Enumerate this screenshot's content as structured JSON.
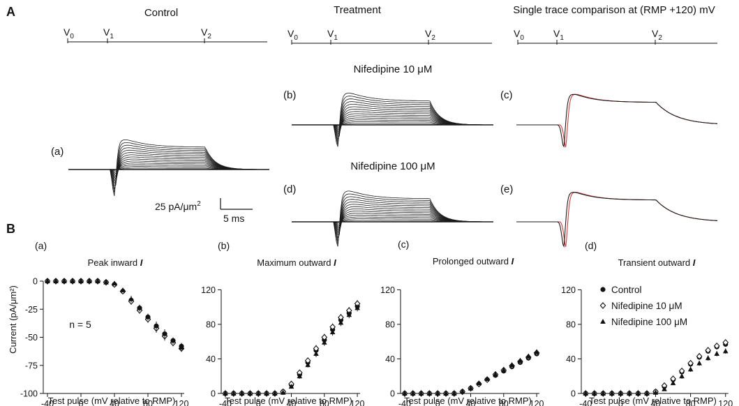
{
  "panel_labels": {
    "A": "A",
    "B": "B"
  },
  "section_A": {
    "titles": {
      "control": "Control",
      "treatment": "Treatment",
      "comparison": "Single trace comparison at (RMP +120) mV"
    },
    "protocol_labels": {
      "v0": "V",
      "v1": "V",
      "v2": "V",
      "s0": "0",
      "s1": "1",
      "s2": "2"
    },
    "subtitles": {
      "nif10": "Nifedipine 10 μM",
      "nif100": "Nifedipine 100 μM"
    },
    "sublabels": {
      "a": "(a)",
      "b": "(b)",
      "c": "(c)",
      "d": "(d)",
      "e": "(e)"
    },
    "scale_bar": {
      "current_label": "25 pA/μm",
      "current_sup": "2",
      "time_label": "5 ms"
    },
    "trace_colors": {
      "main": "#1a1a1a",
      "overlay": "#d43a3a"
    }
  },
  "section_B": {
    "y_axis_label": "Current (pA/μm²)",
    "n_label": "n = 5",
    "legend": {
      "control": "Control",
      "nif10": "Nifedipine 10 μM",
      "nif100": "Nifedipine 100 μM"
    }
  },
  "chart_data": [
    {
      "type": "scatter",
      "panel": "(a)",
      "title": "Peak inward I",
      "title_main": "Peak inward ",
      "title_italic": "I",
      "xlabel": "Test pulse (mV relative to RMP)",
      "ylabel": "Current (pA/μm²)",
      "xlim": [
        -45,
        125
      ],
      "ylim": [
        -100,
        0
      ],
      "xticks": [
        -40,
        0,
        40,
        80,
        120
      ],
      "yticks": [
        0,
        -25,
        -50,
        -75,
        -100
      ],
      "x": [
        -40,
        -30,
        -20,
        -10,
        0,
        10,
        20,
        30,
        40,
        50,
        60,
        70,
        80,
        90,
        100,
        110,
        120
      ],
      "series": [
        {
          "name": "Control",
          "marker": "circle",
          "values": [
            0,
            0,
            0,
            0,
            0,
            0,
            0,
            -1,
            -3,
            -9,
            -17,
            -24,
            -32,
            -40,
            -47,
            -53,
            -58
          ],
          "err": [
            0,
            0,
            0,
            0,
            0,
            0,
            0,
            1,
            1,
            2,
            3,
            3,
            3,
            4,
            4,
            3,
            3
          ]
        },
        {
          "name": "Nifedipine 10 μM",
          "marker": "diamond",
          "values": [
            0,
            0,
            0,
            0,
            0,
            0,
            0,
            -1,
            -3,
            -9,
            -18,
            -26,
            -34,
            -42,
            -49,
            -55,
            -60
          ],
          "err": [
            0,
            0,
            0,
            0,
            0,
            0,
            0,
            1,
            1,
            2,
            3,
            3,
            3,
            4,
            4,
            3,
            3
          ]
        },
        {
          "name": "Nifedipine 100 μM",
          "marker": "triangle",
          "values": [
            0,
            0,
            0,
            0,
            0,
            0,
            0,
            -1,
            -2,
            -8,
            -16,
            -24,
            -32,
            -40,
            -47,
            -53,
            -59
          ],
          "err": [
            0,
            0,
            0,
            0,
            0,
            0,
            0,
            1,
            1,
            2,
            3,
            3,
            3,
            4,
            4,
            3,
            3
          ]
        }
      ]
    },
    {
      "type": "scatter",
      "panel": "(b)",
      "title": "Maximum outward I",
      "title_main": "Maximum outward ",
      "title_italic": "I",
      "xlabel": "Test pulse (mV relative to RMP)",
      "xlim": [
        -45,
        125
      ],
      "ylim": [
        0,
        130
      ],
      "xticks": [
        -40,
        0,
        40,
        80,
        120
      ],
      "yticks": [
        0,
        40,
        80,
        120
      ],
      "x": [
        -40,
        -30,
        -20,
        -10,
        0,
        10,
        20,
        30,
        40,
        50,
        60,
        70,
        80,
        90,
        100,
        110,
        120
      ],
      "series": [
        {
          "name": "Control",
          "marker": "circle",
          "values": [
            0,
            0,
            0,
            0,
            0,
            0,
            0,
            2,
            10,
            22,
            36,
            50,
            62,
            74,
            85,
            93,
            101
          ],
          "err": [
            0,
            0,
            0,
            0,
            0,
            0,
            0,
            1,
            2,
            3,
            3,
            4,
            4,
            4,
            4,
            4,
            4
          ]
        },
        {
          "name": "Nifedipine 10 μM",
          "marker": "diamond",
          "values": [
            0,
            0,
            0,
            0,
            0,
            0,
            0,
            2,
            11,
            24,
            38,
            52,
            65,
            77,
            88,
            96,
            104
          ],
          "err": [
            0,
            0,
            0,
            0,
            0,
            0,
            0,
            1,
            2,
            3,
            3,
            4,
            4,
            4,
            4,
            4,
            4
          ]
        },
        {
          "name": "Nifedipine 100 μM",
          "marker": "triangle",
          "values": [
            0,
            0,
            0,
            0,
            0,
            0,
            0,
            1,
            8,
            20,
            33,
            46,
            59,
            71,
            82,
            91,
            99
          ],
          "err": [
            0,
            0,
            0,
            0,
            0,
            0,
            0,
            1,
            2,
            3,
            3,
            4,
            4,
            4,
            4,
            4,
            4
          ]
        }
      ]
    },
    {
      "type": "scatter",
      "panel": "(c)",
      "title": "Prolonged outward I",
      "title_main": "Prolonged outward ",
      "title_italic": "I",
      "xlabel": "Test pulse (mV relative to RMP)",
      "xlim": [
        -45,
        125
      ],
      "ylim": [
        0,
        130
      ],
      "xticks": [
        -40,
        0,
        40,
        80,
        120
      ],
      "yticks": [
        0,
        40,
        80,
        120
      ],
      "x": [
        -40,
        -30,
        -20,
        -10,
        0,
        10,
        20,
        30,
        40,
        50,
        60,
        70,
        80,
        90,
        100,
        110,
        120
      ],
      "series": [
        {
          "name": "Control",
          "marker": "circle",
          "values": [
            0,
            0,
            0,
            0,
            0,
            0,
            0,
            2,
            6,
            11,
            16,
            21,
            26,
            31,
            36,
            41,
            46
          ],
          "err": [
            0,
            0,
            0,
            0,
            0,
            0,
            0,
            1,
            1,
            2,
            2,
            2,
            2,
            3,
            3,
            3,
            3
          ]
        },
        {
          "name": "Nifedipine 10 μM",
          "marker": "diamond",
          "values": [
            0,
            0,
            0,
            0,
            0,
            0,
            0,
            2,
            6,
            11,
            16,
            22,
            27,
            32,
            37,
            42,
            47
          ],
          "err": [
            0,
            0,
            0,
            0,
            0,
            0,
            0,
            1,
            1,
            2,
            2,
            2,
            2,
            3,
            3,
            3,
            3
          ]
        },
        {
          "name": "Nifedipine 100 μM",
          "marker": "triangle",
          "values": [
            0,
            0,
            0,
            0,
            0,
            0,
            0,
            2,
            6,
            12,
            17,
            22,
            27,
            33,
            38,
            43,
            48
          ],
          "err": [
            0,
            0,
            0,
            0,
            0,
            0,
            0,
            1,
            1,
            2,
            2,
            2,
            2,
            3,
            3,
            3,
            3
          ]
        }
      ]
    },
    {
      "type": "scatter",
      "panel": "(d)",
      "title": "Transient outward I",
      "title_main": "Transient outward ",
      "title_italic": "I",
      "xlabel": "Test pulse (mV relative to RMP)",
      "xlim": [
        -45,
        125
      ],
      "ylim": [
        0,
        130
      ],
      "xticks": [
        -40,
        0,
        40,
        80,
        120
      ],
      "yticks": [
        0,
        40,
        80,
        120
      ],
      "x": [
        -40,
        -30,
        -20,
        -10,
        0,
        10,
        20,
        30,
        40,
        50,
        60,
        70,
        80,
        90,
        100,
        110,
        120
      ],
      "series": [
        {
          "name": "Control",
          "marker": "circle",
          "values": [
            0,
            0,
            0,
            0,
            0,
            0,
            0,
            0,
            2,
            8,
            16,
            25,
            34,
            42,
            49,
            54,
            57
          ],
          "err": [
            0,
            0,
            0,
            0,
            0,
            0,
            0,
            0,
            1,
            2,
            2,
            3,
            3,
            3,
            3,
            3,
            3
          ]
        },
        {
          "name": "Nifedipine 10 μM",
          "marker": "diamond",
          "values": [
            0,
            0,
            0,
            0,
            0,
            0,
            0,
            0,
            2,
            9,
            17,
            26,
            35,
            43,
            50,
            55,
            59
          ],
          "err": [
            0,
            0,
            0,
            0,
            0,
            0,
            0,
            0,
            1,
            2,
            2,
            3,
            3,
            3,
            3,
            3,
            3
          ]
        },
        {
          "name": "Nifedipine 100 μM",
          "marker": "triangle",
          "values": [
            0,
            0,
            0,
            0,
            0,
            0,
            0,
            0,
            1,
            5,
            12,
            20,
            28,
            35,
            41,
            46,
            49
          ],
          "err": [
            0,
            0,
            0,
            0,
            0,
            0,
            0,
            0,
            1,
            2,
            2,
            3,
            3,
            3,
            3,
            3,
            3
          ]
        }
      ]
    }
  ]
}
